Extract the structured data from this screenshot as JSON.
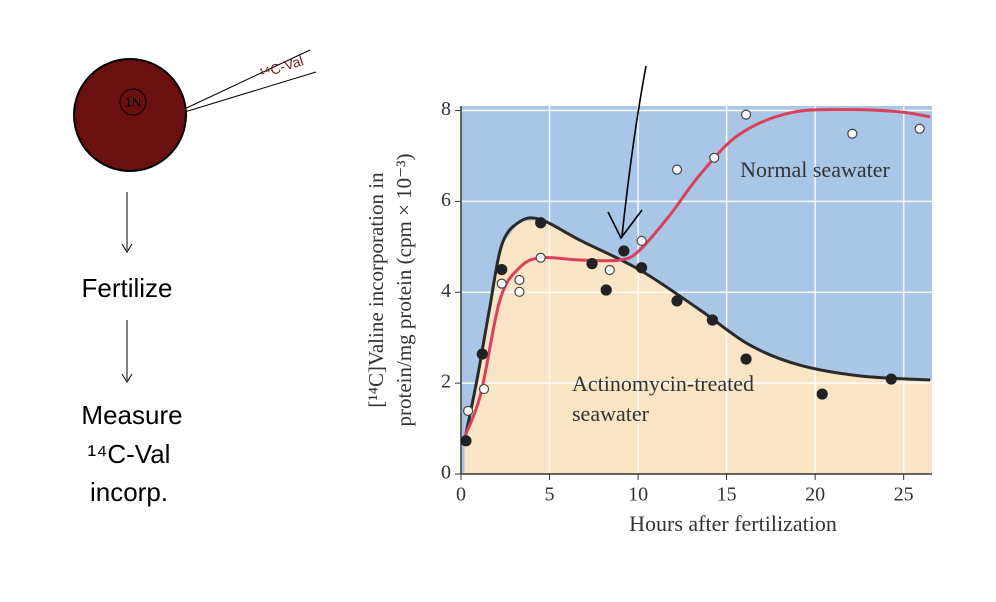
{
  "diagram": {
    "cell_label": "1N",
    "tracer": "¹⁴C-Val",
    "step1": "Fertilize",
    "step2": [
      "Measure",
      "¹⁴C-Val",
      "incorp."
    ]
  },
  "chart_data": {
    "type": "scatter",
    "y_label": [
      "[¹⁴C]Valine incorporation in",
      "protein/mg protein (cpm × 10⁻³)"
    ],
    "x_label": "Hours after fertilization",
    "annotations": [
      [
        "Normal seawater"
      ],
      [
        "Actinomycin-treated",
        "seawater"
      ]
    ],
    "xlim": [
      0,
      26.6
    ],
    "ylim": [
      0,
      8.1
    ],
    "xticks": [
      0,
      5,
      10,
      15,
      20,
      25
    ],
    "yticks": [
      0,
      2,
      4,
      6,
      8
    ],
    "grid": true,
    "fill_above": "#a9c6e6",
    "fill_below": "#f9e4c6",
    "series": [
      {
        "marker": "filled",
        "color": "#222222",
        "x": [
          0.28,
          1.2,
          2.3,
          4.5,
          7.4,
          8.2,
          9.2,
          10.2,
          12.2,
          14.2,
          16.1,
          20.4,
          24.3
        ],
        "values": [
          0.73,
          2.64,
          4.5,
          5.53,
          4.63,
          4.05,
          4.91,
          4.54,
          3.81,
          3.39,
          2.53,
          1.76,
          2.09
        ]
      },
      {
        "marker": "open",
        "color": "#ffffff",
        "x": [
          0.4,
          1.3,
          2.3,
          3.3,
          3.3,
          4.5,
          8.4,
          10.2,
          12.2,
          14.3,
          16.1,
          22.1,
          25.9
        ],
        "values": [
          1.39,
          1.87,
          4.19,
          4.27,
          4.01,
          4.76,
          4.49,
          5.13,
          6.7,
          6.96,
          7.91,
          7.49,
          7.6
        ]
      }
    ],
    "curves": [
      {
        "color": "#2a2a2a",
        "x": [
          0.2,
          0.9,
          1.6,
          2.3,
          3.3,
          4.5,
          6.7,
          10.1,
          13.5,
          16.3,
          19.1,
          22.5,
          26.5
        ],
        "values": [
          0.73,
          2.07,
          3.61,
          5.04,
          5.55,
          5.6,
          5.15,
          4.49,
          3.61,
          2.84,
          2.4,
          2.16,
          2.07
        ]
      },
      {
        "color": "#d9405a",
        "x": [
          0.1,
          1.1,
          2.2,
          3.3,
          4.5,
          6.7,
          9.0,
          10.1,
          11.8,
          13.5,
          15.7,
          18.6,
          22.0,
          24.8,
          26.5
        ],
        "values": [
          0.73,
          1.74,
          3.83,
          4.54,
          4.76,
          4.71,
          4.71,
          4.93,
          5.7,
          6.59,
          7.47,
          7.95,
          8.02,
          7.97,
          7.86
        ]
      }
    ]
  }
}
